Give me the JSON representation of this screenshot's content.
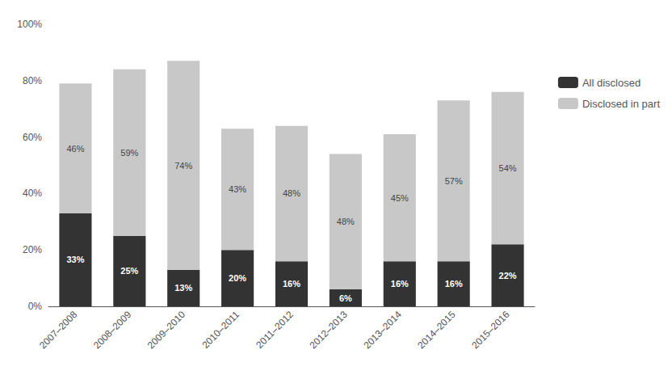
{
  "chart_data": {
    "type": "bar",
    "stacked": true,
    "categories": [
      "2007–2008",
      "2008–2009",
      "2009–2010",
      "2010–2011",
      "2011–2012",
      "2012–2013",
      "2013–2014",
      "2014–2015",
      "2015–2016"
    ],
    "series": [
      {
        "name": "All disclosed",
        "color": "#333333",
        "values": [
          33,
          25,
          13,
          20,
          16,
          6,
          16,
          16,
          22
        ],
        "value_labels": [
          "33%",
          "25%",
          "13%",
          "20%",
          "16%",
          "6%",
          "16%",
          "16%",
          "22%"
        ]
      },
      {
        "name": "Disclosed in part",
        "color": "#c8c8c8",
        "values": [
          46,
          59,
          74,
          43,
          48,
          48,
          45,
          57,
          54
        ],
        "value_labels": [
          "46%",
          "59%",
          "74%",
          "43%",
          "48%",
          "48%",
          "45%",
          "57%",
          "54%"
        ]
      }
    ],
    "ylim": [
      0,
      100
    ],
    "yticks": [
      {
        "value": 0,
        "label": "0%"
      },
      {
        "value": 20,
        "label": "20%"
      },
      {
        "value": 40,
        "label": "40%"
      },
      {
        "value": 60,
        "label": "60%"
      },
      {
        "value": 80,
        "label": "80%"
      },
      {
        "value": 100,
        "label": "100%"
      }
    ],
    "grid": false,
    "legend": "right",
    "data_labels": true
  }
}
